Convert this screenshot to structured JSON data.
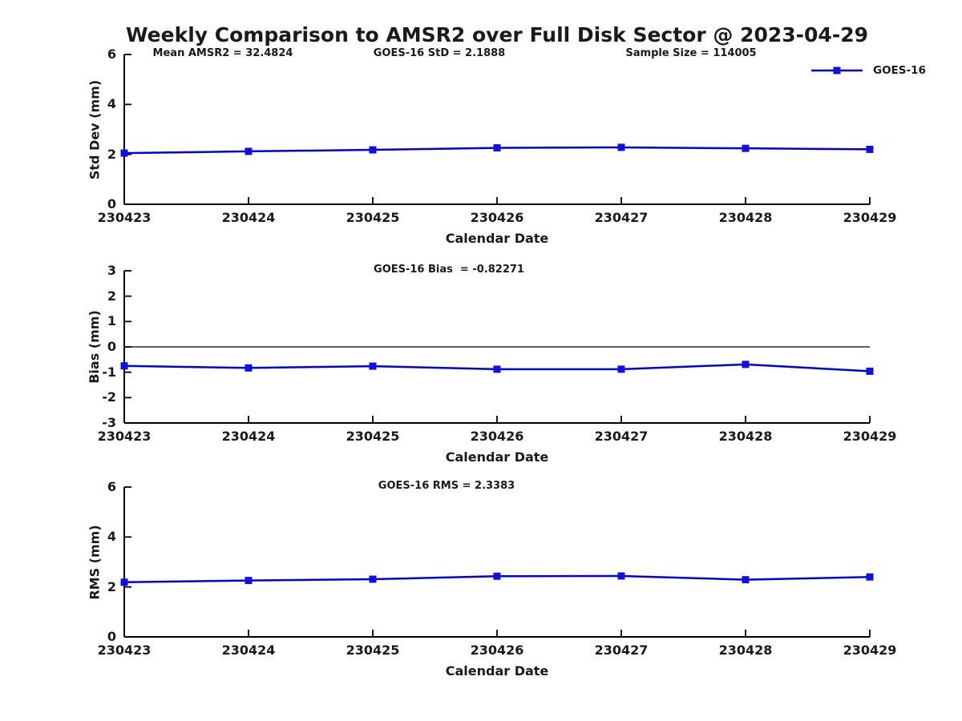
{
  "title": "Weekly Comparison to AMSR2 over Full Disk Sector @ 2023-04-29",
  "legend": {
    "label": "GOES-16"
  },
  "colors": {
    "line": "#0000E0",
    "marker": "#0F0FE8",
    "axis": "#000000",
    "text": "#1A1A1A"
  },
  "chart_data": [
    {
      "type": "line",
      "name": "std-dev",
      "annotations": [
        "Mean AMSR2 = 32.4824",
        "GOES-16 StD = 2.1888",
        "Sample Size = 114005"
      ],
      "categories": [
        "230423",
        "230424",
        "230425",
        "230426",
        "230427",
        "230428",
        "230429"
      ],
      "series": [
        {
          "name": "GOES-16",
          "values": [
            2.05,
            2.12,
            2.18,
            2.26,
            2.28,
            2.24,
            2.2
          ]
        }
      ],
      "xlabel": "Calendar Date",
      "ylabel": "Std Dev (mm)",
      "ylim": [
        0,
        6
      ],
      "yticks": [
        6,
        4,
        2,
        0
      ],
      "grid": false,
      "legend_position": "top-right",
      "zero_line": false
    },
    {
      "type": "line",
      "name": "bias",
      "annotations": [
        "GOES-16 Bias  = -0.82271"
      ],
      "categories": [
        "230423",
        "230424",
        "230425",
        "230426",
        "230427",
        "230428",
        "230429"
      ],
      "series": [
        {
          "name": "GOES-16",
          "values": [
            -0.75,
            -0.83,
            -0.76,
            -0.88,
            -0.88,
            -0.69,
            -0.96
          ]
        }
      ],
      "xlabel": "Calendar Date",
      "ylabel": "Bias (mm)",
      "ylim": [
        -3,
        3
      ],
      "yticks": [
        3,
        2,
        1,
        0,
        -1,
        -2,
        -3
      ],
      "grid": false,
      "legend_position": "none",
      "zero_line": true
    },
    {
      "type": "line",
      "name": "rms",
      "annotations": [
        "GOES-16 RMS = 2.3383"
      ],
      "categories": [
        "230423",
        "230424",
        "230425",
        "230426",
        "230427",
        "230428",
        "230429"
      ],
      "series": [
        {
          "name": "GOES-16",
          "values": [
            2.19,
            2.26,
            2.31,
            2.43,
            2.44,
            2.29,
            2.4
          ]
        }
      ],
      "xlabel": "Calendar Date",
      "ylabel": "RMS (mm)",
      "ylim": [
        0,
        6
      ],
      "yticks": [
        6,
        4,
        2,
        0
      ],
      "grid": false,
      "legend_position": "none",
      "zero_line": false
    }
  ]
}
